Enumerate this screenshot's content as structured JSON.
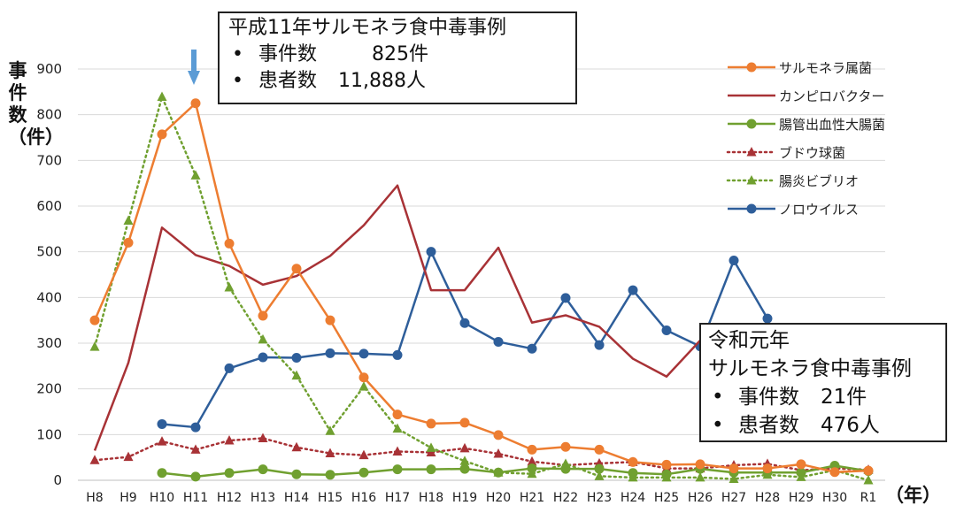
{
  "chart_data": {
    "type": "line",
    "ylabel": "事件数（件）",
    "xunit": "（年）",
    "ylim": [
      0,
      900
    ],
    "yticks": [
      0,
      100,
      200,
      300,
      400,
      500,
      600,
      700,
      800,
      900
    ],
    "categories": [
      "H8",
      "H9",
      "H10",
      "H11",
      "H12",
      "H13",
      "H14",
      "H15",
      "H16",
      "H17",
      "H18",
      "H19",
      "H20",
      "H21",
      "H22",
      "H23",
      "H24",
      "H25",
      "H26",
      "H27",
      "H28",
      "H29",
      "H30",
      "R1"
    ],
    "series": [
      {
        "name": "サルモネラ属菌",
        "color": "#ED7D31",
        "style": "solid",
        "marker": "circle",
        "values": [
          350,
          520,
          757,
          825,
          518,
          360,
          463,
          350,
          225,
          144,
          124,
          126,
          99,
          67,
          73,
          67,
          40,
          34,
          35,
          26,
          26,
          35,
          18,
          21
        ]
      },
      {
        "name": "カンピロバクター",
        "color": "#A83236",
        "style": "solid",
        "marker": "none",
        "values": [
          65,
          257,
          553,
          493,
          469,
          428,
          447,
          491,
          558,
          645,
          416,
          416,
          509,
          345,
          361,
          336,
          266,
          227,
          306,
          null,
          null,
          null,
          null,
          null
        ]
      },
      {
        "name": "腸管出血性大腸菌",
        "color": "#70A030",
        "style": "solid",
        "marker": "circle",
        "values": [
          null,
          null,
          16,
          8,
          16,
          24,
          13,
          12,
          17,
          24,
          24,
          25,
          17,
          26,
          25,
          25,
          16,
          13,
          25,
          17,
          17,
          17,
          32,
          20
        ]
      },
      {
        "name": "ブドウ球菌",
        "color": "#A83236",
        "style": "dotted",
        "marker": "triangle",
        "values": [
          44,
          51,
          85,
          67,
          87,
          92,
          72,
          59,
          55,
          63,
          61,
          70,
          58,
          41,
          33,
          37,
          40,
          26,
          26,
          33,
          36,
          22,
          26,
          23
        ]
      },
      {
        "name": "腸炎ビブリオ",
        "color": "#70A030",
        "style": "dotted",
        "marker": "triangle",
        "values": [
          292,
          568,
          839,
          667,
          422,
          308,
          229,
          108,
          205,
          113,
          71,
          42,
          17,
          14,
          36,
          9,
          6,
          6,
          6,
          3,
          12,
          7,
          22,
          0
        ]
      },
      {
        "name": "ノロウイルス",
        "color": "#2E5E9A",
        "style": "solid",
        "marker": "circle",
        "values": [
          null,
          null,
          123,
          116,
          245,
          269,
          268,
          278,
          277,
          274,
          500,
          344,
          303,
          288,
          399,
          296,
          416,
          328,
          293,
          481,
          354,
          null,
          null,
          null
        ]
      }
    ]
  },
  "annotations": {
    "box1": {
      "title": "平成11年サルモネラ食中毒事例",
      "line1_label": "事件数",
      "line1_value": "825件",
      "line2_label": "患者数",
      "line2_value": "11,888人"
    },
    "box2": {
      "title1": "令和元年",
      "title2": "サルモネラ食中毒事例",
      "line1_label": "事件数",
      "line1_value": "21件",
      "line2_label": "患者数",
      "line2_value": "476人"
    }
  },
  "colors": {
    "arrow": "#5B9BD5",
    "grid": "#D9D9D9"
  }
}
